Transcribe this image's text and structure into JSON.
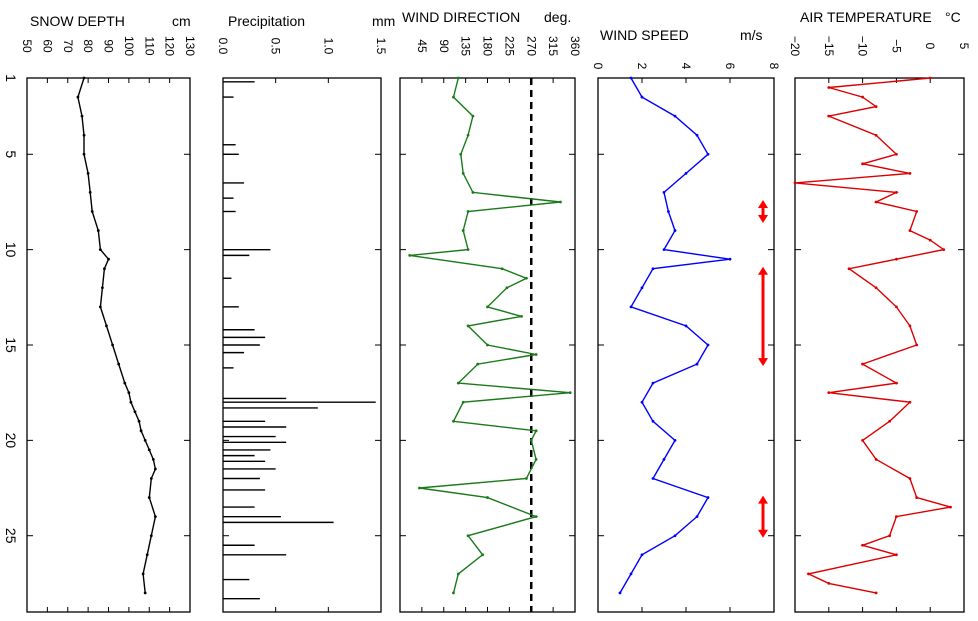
{
  "figure": {
    "day_axis_ticks": [
      1,
      5,
      10,
      15,
      20,
      25
    ],
    "day_range": [
      1,
      29
    ]
  },
  "chart_data": [
    {
      "type": "line",
      "title": "SNOW DEPTH",
      "unit": "cm",
      "xlim": [
        50,
        130
      ],
      "x_ticks": [
        50,
        60,
        70,
        80,
        90,
        100,
        110,
        120,
        130
      ],
      "color": "#000000",
      "series": [
        {
          "day": [
            1,
            2,
            3,
            4,
            5,
            6,
            7,
            8,
            9,
            10,
            10.5,
            11,
            12,
            13,
            14,
            15,
            16,
            17,
            17.5,
            18,
            18.5,
            19,
            19.5,
            20,
            20.5,
            21,
            21.5,
            22,
            23,
            24,
            25,
            26,
            27,
            28
          ],
          "values": [
            78,
            75,
            77,
            78,
            78,
            80,
            81,
            82,
            85,
            86,
            90,
            88,
            87,
            86,
            89,
            92,
            95,
            98,
            100,
            101,
            103,
            105,
            106,
            108,
            110,
            112,
            113,
            111,
            110,
            113,
            111,
            109,
            107,
            108
          ]
        }
      ]
    },
    {
      "type": "bar",
      "title": "Precipitation",
      "unit": "mm",
      "xlim": [
        0.0,
        1.5
      ],
      "x_ticks": [
        0.0,
        0.5,
        1.0,
        1.5
      ],
      "x_tick_labels": [
        "0.0",
        "0.5",
        "1.0",
        "1.5"
      ],
      "color": "#000000",
      "series": [
        {
          "day": [
            1.2,
            2.0,
            4.5,
            5.0,
            6.5,
            7.3,
            8.0,
            10.0,
            10.3,
            11.5,
            13.0,
            14.2,
            14.6,
            15.0,
            15.4,
            16.2,
            17.8,
            18.0,
            18.3,
            19.0,
            19.3,
            19.8,
            20.1,
            20.5,
            20.8,
            21.1,
            21.5,
            22.0,
            22.6,
            23.5,
            24.0,
            24.3,
            25.5,
            26.0,
            27.3,
            28.3
          ],
          "values": [
            0.3,
            0.1,
            0.12,
            0.15,
            0.2,
            0.1,
            0.12,
            0.45,
            0.25,
            0.08,
            0.15,
            0.3,
            0.4,
            0.35,
            0.2,
            0.1,
            0.6,
            1.45,
            0.9,
            0.4,
            0.6,
            0.5,
            0.6,
            0.45,
            0.3,
            0.4,
            0.5,
            0.35,
            0.4,
            0.3,
            0.55,
            1.05,
            0.3,
            0.6,
            0.25,
            0.35
          ]
        }
      ]
    },
    {
      "type": "line",
      "title": "WIND DIRECTION",
      "unit": "deg.",
      "xlim": [
        0,
        360
      ],
      "x_ticks": [
        45,
        90,
        135,
        180,
        225,
        270,
        315,
        360
      ],
      "reference_line": 270,
      "color": "#1a7a1a",
      "series": [
        {
          "day": [
            1,
            2,
            3,
            4,
            5,
            6,
            7,
            7.5,
            8,
            9,
            10,
            10.3,
            11,
            11.5,
            12,
            13,
            13.5,
            14,
            15,
            15.5,
            16,
            17,
            17.5,
            18,
            19,
            19.5,
            20,
            21,
            22,
            22.5,
            23,
            24,
            25,
            26,
            27,
            28
          ],
          "values": [
            120,
            110,
            150,
            140,
            125,
            130,
            150,
            330,
            140,
            130,
            140,
            20,
            210,
            260,
            220,
            180,
            250,
            140,
            180,
            280,
            160,
            120,
            350,
            130,
            110,
            280,
            270,
            280,
            260,
            40,
            180,
            280,
            140,
            170,
            120,
            110
          ]
        }
      ]
    },
    {
      "type": "line",
      "title": "WIND SPEED",
      "unit": "m/s",
      "xlim": [
        0,
        8
      ],
      "x_ticks": [
        0,
        2,
        4,
        6,
        8
      ],
      "color": "#0000ff",
      "marker_color": "#ff0000",
      "markers": [
        {
          "from": 7.5,
          "to": 8.5
        },
        {
          "from": 11.0,
          "to": 16.0
        },
        {
          "from": 23.0,
          "to": 25.0
        }
      ],
      "series": [
        {
          "day": [
            1,
            2,
            3,
            4,
            5,
            6,
            7,
            8,
            9,
            10,
            10.5,
            11,
            12,
            13,
            14,
            15,
            16,
            17,
            18,
            19,
            20,
            21,
            22,
            23,
            24,
            25,
            26,
            27,
            28
          ],
          "values": [
            1.5,
            2.0,
            3.5,
            4.5,
            5.0,
            4.0,
            3.0,
            3.2,
            3.5,
            3.0,
            6.0,
            2.5,
            2.0,
            1.5,
            4.0,
            5.0,
            4.5,
            2.5,
            2.0,
            2.5,
            3.5,
            3.0,
            2.5,
            5.0,
            4.5,
            3.5,
            2.0,
            1.5,
            1.0
          ]
        }
      ]
    },
    {
      "type": "line",
      "title": "AIR TEMPERATURE",
      "unit": "°C",
      "xlim": [
        -20,
        5
      ],
      "x_ticks": [
        -20,
        -15,
        -10,
        -5,
        0,
        5
      ],
      "x_tick_labels": [
        "−20",
        "−15",
        "−10",
        "−5",
        "0",
        "5"
      ],
      "color": "#dd0000",
      "series": [
        {
          "day": [
            1,
            1.5,
            2,
            2.5,
            3,
            4,
            5,
            5.5,
            6,
            6.5,
            7,
            7.5,
            8,
            9,
            9.5,
            10,
            10.5,
            11,
            12,
            13,
            14,
            15,
            16,
            17,
            17.5,
            18,
            19,
            20,
            21,
            22,
            23,
            23.5,
            24,
            25,
            25.5,
            26,
            27,
            27.5,
            28
          ],
          "values": [
            0,
            -15,
            -10,
            -8,
            -15,
            -8,
            -5,
            -10,
            -3,
            -20,
            -5,
            -8,
            -2,
            -3,
            0,
            2,
            -5,
            -12,
            -8,
            -5,
            -3,
            -2,
            -10,
            -5,
            -15,
            -3,
            -6,
            -10,
            -8,
            -3,
            -2,
            3,
            -5,
            -6,
            -10,
            -5,
            -18,
            -15,
            -8
          ]
        }
      ]
    }
  ]
}
